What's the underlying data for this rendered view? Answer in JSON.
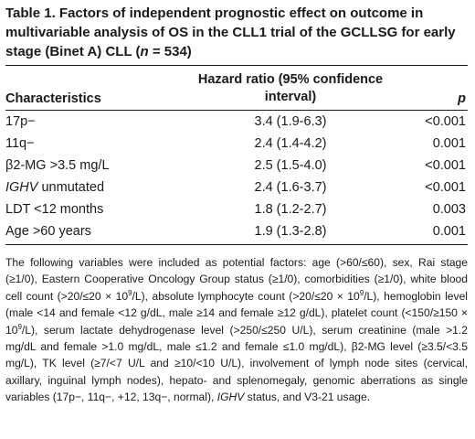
{
  "title": {
    "part1": "Table 1.  Factors of independent prognostic effect on outcome in multivariable analysis of OS in the CLL1 trial of the GCLLSG for early stage (Binet A) CLL (",
    "n_var": "n",
    "part2": " = 534)"
  },
  "headers": {
    "characteristics": "Characteristics",
    "hazard_ratio": "Hazard ratio (95% confidence interval)",
    "p": "p"
  },
  "rows": [
    {
      "characteristic": "17p−",
      "hr": "3.4 (1.9-6.3)",
      "p": "<0.001"
    },
    {
      "characteristic": "11q−",
      "hr": "2.4 (1.4-4.2)",
      "p": "0.001"
    },
    {
      "characteristic": "β2-MG >3.5 mg/L",
      "hr": "2.5 (1.5-4.0)",
      "p": "<0.001"
    },
    {
      "characteristic_italic": "IGHV",
      "characteristic_rest": " unmutated",
      "hr": "2.4 (1.6-3.7)",
      "p": "<0.001"
    },
    {
      "characteristic": "LDT <12 months",
      "hr": "1.8 (1.2-2.7)",
      "p": "0.003"
    },
    {
      "characteristic": "Age >60 years",
      "hr": "1.9 (1.3-2.8)",
      "p": "0.001"
    }
  ],
  "footnote": {
    "s1": "The following variables were included as potential factors: age (>60/≤60), sex, Rai stage (≥1/0), Eastern Cooperative Oncology Group status (≥1/0), comorbidities (≥1/0), white blood cell count (>20/≤20 × 10",
    "sup9": "9",
    "s2": "/L), absolute lymphocyte count (>20/≤20 × 10",
    "s3": "/L), hemoglobin level (male <14 and female <12 g/dL, male ≥14 and female ≥12 g/dL), platelet count (<150/≥150 × 10",
    "s4": "/L), serum lactate dehydrogenase level (>250/≤250 U/L), serum creatinine (male >1.2 mg/dL and female >1.0 mg/dL, male ≤1.2 and female ≤1.0 mg/dL), β2-MG level (≥3.5/<3.5 mg/L), TK level (≥7/<7 U/L and ≥10/<10 U/L), involvement of lymph node sites (cervical, axillary, inguinal lymph nodes), hepato- and splenomegaly, genomic aberrations as single variables (17p−, 11q−, +12, 13q−, normal), ",
    "ighv": "IGHV",
    "s5": " status, and V3-21 usage."
  }
}
